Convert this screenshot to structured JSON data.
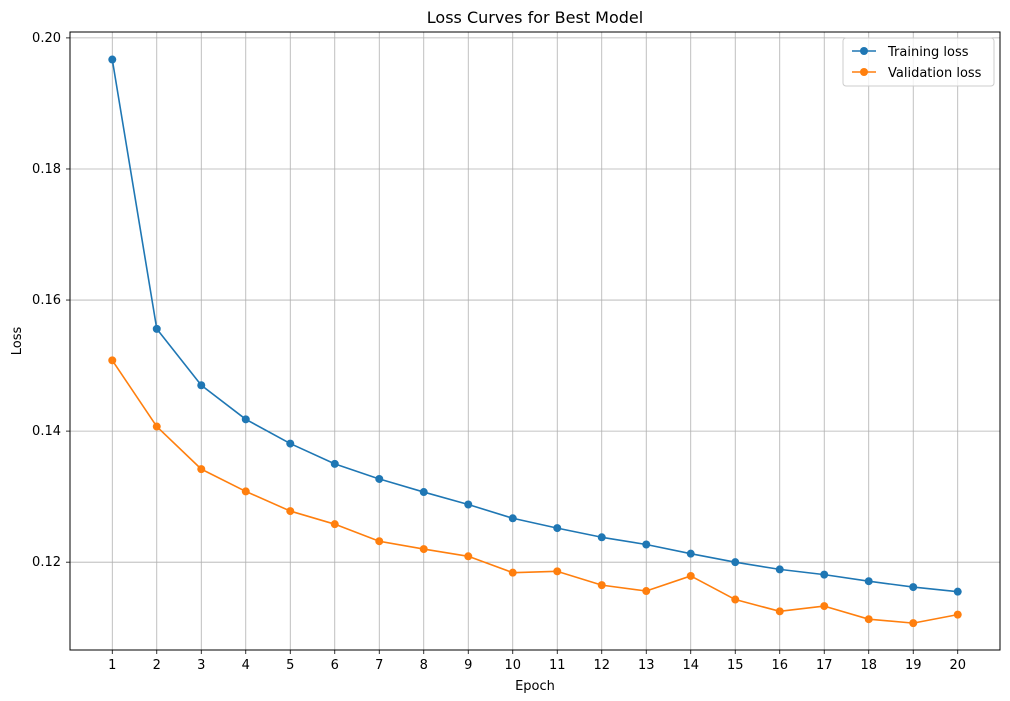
{
  "chart_data": {
    "type": "line",
    "title": "Loss Curves for Best Model",
    "xlabel": "Epoch",
    "ylabel": "Loss",
    "x": [
      1,
      2,
      3,
      4,
      5,
      6,
      7,
      8,
      9,
      10,
      11,
      12,
      13,
      14,
      15,
      16,
      17,
      18,
      19,
      20
    ],
    "xlim": [
      0.05,
      20.95
    ],
    "ylim": [
      0.1066,
      0.2009
    ],
    "yticks": [
      0.12,
      0.14,
      0.16,
      0.18,
      0.2
    ],
    "ytick_labels": [
      "0.12",
      "0.14",
      "0.16",
      "0.18",
      "0.20"
    ],
    "grid": true,
    "legend_position": "top-right",
    "series": [
      {
        "name": "Training loss",
        "color": "#1f77b4",
        "marker": "circle",
        "values": [
          0.1967,
          0.1556,
          0.147,
          0.1418,
          0.1381,
          0.135,
          0.1327,
          0.1307,
          0.1288,
          0.1267,
          0.1252,
          0.1238,
          0.1227,
          0.1213,
          0.12,
          0.1189,
          0.1181,
          0.1171,
          0.1162,
          0.1155
        ]
      },
      {
        "name": "Validation loss",
        "color": "#ff7f0e",
        "marker": "circle",
        "values": [
          0.1508,
          0.1407,
          0.1342,
          0.1308,
          0.1278,
          0.1258,
          0.1232,
          0.122,
          0.1209,
          0.1184,
          0.1186,
          0.1165,
          0.1156,
          0.1179,
          0.1143,
          0.1125,
          0.1133,
          0.1113,
          0.1107,
          0.112
        ]
      }
    ]
  }
}
